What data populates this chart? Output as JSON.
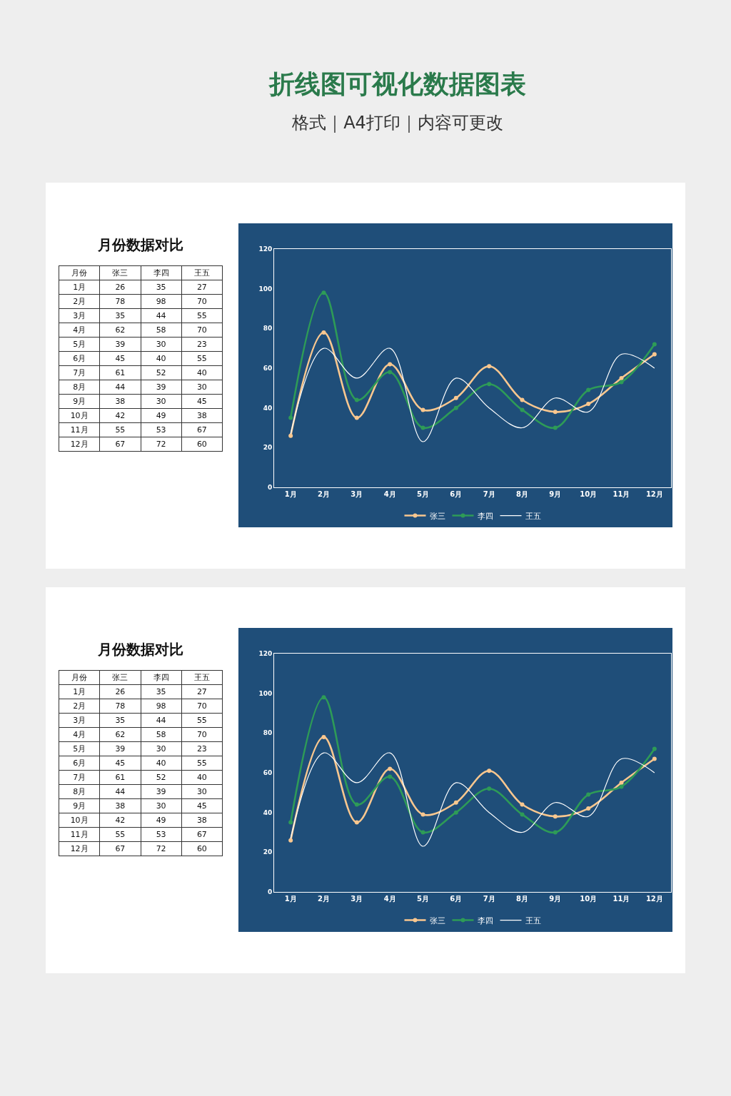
{
  "chart_data": [
    {
      "type": "heatmap",
      "title": "月份数据对比",
      "ylabel": "月份",
      "annotations": [
        "折线图可视化数据图表",
        "格式｜A4打印｜内容可更改"
      ],
      "categories": [
        "张三",
        "李四",
        "王五"
      ],
      "y_categories": [
        "1月",
        "2月",
        "3月",
        "4月",
        "5月",
        "6月",
        "7月",
        "8月",
        "9月",
        "10月",
        "11月",
        "12月"
      ],
      "cells": [
        [
          26,
          35,
          27
        ],
        [
          78,
          98,
          70
        ],
        [
          35,
          44,
          55
        ],
        [
          62,
          58,
          70
        ],
        [
          39,
          30,
          23
        ],
        [
          45,
          40,
          55
        ],
        [
          61,
          52,
          40
        ],
        [
          44,
          39,
          30
        ],
        [
          38,
          30,
          45
        ],
        [
          42,
          49,
          38
        ],
        [
          55,
          53,
          67
        ],
        [
          67,
          72,
          60
        ]
      ],
      "data_labels": true
    },
    {
      "type": "line",
      "categories": [
        "1月",
        "2月",
        "3月",
        "4月",
        "5月",
        "6月",
        "7月",
        "8月",
        "9月",
        "10月",
        "11月",
        "12月"
      ],
      "series": [
        {
          "name": "张三",
          "color": "#f9c78f",
          "values": [
            26,
            78,
            35,
            62,
            39,
            45,
            61,
            44,
            38,
            42,
            55,
            67
          ]
        },
        {
          "name": "李四",
          "color": "#2e9b57",
          "values": [
            35,
            98,
            44,
            58,
            30,
            40,
            52,
            39,
            30,
            49,
            53,
            72
          ]
        },
        {
          "name": "王五",
          "color": "#ffffff",
          "marker": "none",
          "values": [
            27,
            70,
            55,
            70,
            23,
            55,
            40,
            30,
            45,
            38,
            67,
            60
          ]
        }
      ],
      "ylim": [
        0,
        120
      ],
      "yticks": [
        0,
        20,
        40,
        60,
        80,
        100,
        120
      ],
      "marker": "circle",
      "legend": "bottom"
    },
    {
      "type": "heatmap",
      "title": "月份数据对比",
      "ylabel": "月份",
      "categories": [
        "张三",
        "李四",
        "王五"
      ],
      "y_categories": [
        "1月",
        "2月",
        "3月",
        "4月",
        "5月",
        "6月",
        "7月",
        "8月",
        "9月",
        "10月",
        "11月",
        "12月"
      ],
      "cells": [
        [
          26,
          35,
          27
        ],
        [
          78,
          98,
          70
        ],
        [
          35,
          44,
          55
        ],
        [
          62,
          58,
          70
        ],
        [
          39,
          30,
          23
        ],
        [
          45,
          40,
          55
        ],
        [
          61,
          52,
          40
        ],
        [
          44,
          39,
          30
        ],
        [
          38,
          30,
          45
        ],
        [
          42,
          49,
          38
        ],
        [
          55,
          53,
          67
        ],
        [
          67,
          72,
          60
        ]
      ],
      "data_labels": true
    },
    {
      "type": "line",
      "categories": [
        "1月",
        "2月",
        "3月",
        "4月",
        "5月",
        "6月",
        "7月",
        "8月",
        "9月",
        "10月",
        "11月",
        "12月"
      ],
      "series": [
        {
          "name": "张三",
          "color": "#f9c78f",
          "values": [
            26,
            78,
            35,
            62,
            39,
            45,
            61,
            44,
            38,
            42,
            55,
            67
          ]
        },
        {
          "name": "李四",
          "color": "#2e9b57",
          "values": [
            35,
            98,
            44,
            58,
            30,
            40,
            52,
            39,
            30,
            49,
            53,
            72
          ]
        },
        {
          "name": "王五",
          "color": "#ffffff",
          "marker": "none",
          "values": [
            27,
            70,
            55,
            70,
            23,
            55,
            40,
            30,
            45,
            38,
            67,
            60
          ]
        }
      ],
      "ylim": [
        0,
        120
      ],
      "yticks": [
        0,
        20,
        40,
        60,
        80,
        100,
        120
      ],
      "marker": "circle",
      "legend": "bottom"
    }
  ]
}
